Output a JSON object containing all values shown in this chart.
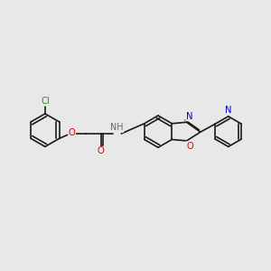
{
  "background_color": "#e8e8e8",
  "bond_color": "#1a1a1a",
  "figsize": [
    3.0,
    3.0
  ],
  "dpi": 100,
  "atom_colors": {
    "Cl": "#00aa00",
    "O": "#dd0000",
    "NH": "#666666",
    "N_oxazole": "#0000cc",
    "N_pyridine": "#0000cc"
  },
  "font_size": 7.2,
  "lw": 1.2
}
